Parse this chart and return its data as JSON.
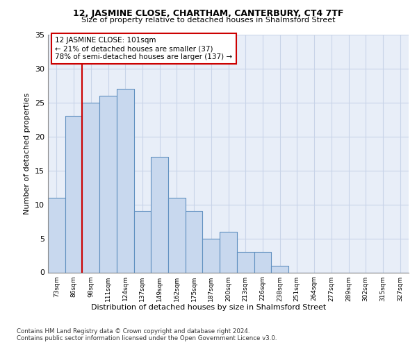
{
  "title1": "12, JASMINE CLOSE, CHARTHAM, CANTERBURY, CT4 7TF",
  "title2": "Size of property relative to detached houses in Shalmsford Street",
  "xlabel": "Distribution of detached houses by size in Shalmsford Street",
  "ylabel": "Number of detached properties",
  "footer1": "Contains HM Land Registry data © Crown copyright and database right 2024.",
  "footer2": "Contains public sector information licensed under the Open Government Licence v3.0.",
  "annotation_line1": "12 JASMINE CLOSE: 101sqm",
  "annotation_line2": "← 21% of detached houses are smaller (37)",
  "annotation_line3": "78% of semi-detached houses are larger (137) →",
  "bar_labels": [
    "73sqm",
    "86sqm",
    "98sqm",
    "111sqm",
    "124sqm",
    "137sqm",
    "149sqm",
    "162sqm",
    "175sqm",
    "187sqm",
    "200sqm",
    "213sqm",
    "226sqm",
    "238sqm",
    "251sqm",
    "264sqm",
    "277sqm",
    "289sqm",
    "302sqm",
    "315sqm",
    "327sqm"
  ],
  "bar_values": [
    11,
    23,
    25,
    26,
    27,
    9,
    17,
    11,
    9,
    5,
    6,
    3,
    3,
    1,
    0,
    0,
    0,
    0,
    0,
    0,
    0
  ],
  "bar_color": "#c8d8ee",
  "bar_edge_color": "#6090c0",
  "red_line_index": 2,
  "ylim": [
    0,
    35
  ],
  "yticks": [
    0,
    5,
    10,
    15,
    20,
    25,
    30,
    35
  ],
  "annotation_box_color": "#cc0000",
  "grid_color": "#c8d4e8",
  "bg_color": "#e8eef8",
  "title1_fontsize": 9,
  "title2_fontsize": 8
}
